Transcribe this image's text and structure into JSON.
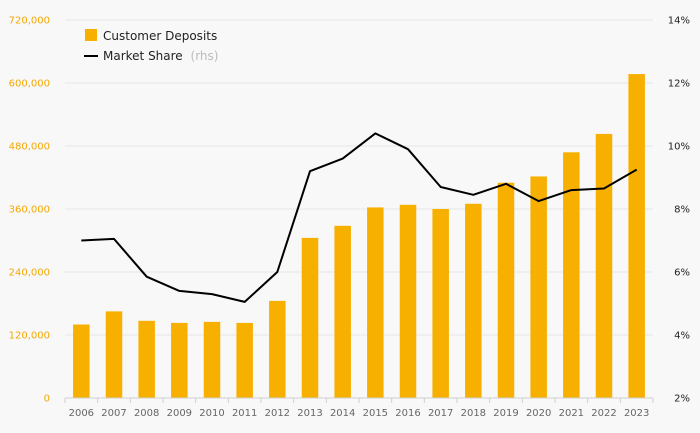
{
  "chart_data": {
    "type": "bar",
    "categories": [
      "2006",
      "2007",
      "2008",
      "2009",
      "2010",
      "2011",
      "2012",
      "2013",
      "2014",
      "2015",
      "2016",
      "2017",
      "2018",
      "2019",
      "2020",
      "2021",
      "2022",
      "2023"
    ],
    "series": [
      {
        "name": "Customer Deposits",
        "type": "bar",
        "axis": "left",
        "color": "#f7b000",
        "values": [
          140000,
          165000,
          147000,
          143000,
          145000,
          143000,
          185000,
          305000,
          328000,
          363000,
          368000,
          360000,
          370000,
          410000,
          422000,
          468000,
          503000,
          617000
        ]
      },
      {
        "name": "Market Share",
        "name_suffix": "(rhs)",
        "type": "line",
        "axis": "right",
        "color": "#000000",
        "values": [
          7.0,
          7.05,
          5.85,
          5.4,
          5.3,
          5.05,
          6.0,
          9.2,
          9.6,
          10.4,
          9.9,
          8.7,
          8.45,
          8.8,
          8.25,
          8.6,
          8.65,
          9.25
        ]
      }
    ],
    "y_left": {
      "ylim": [
        0,
        720000
      ],
      "ticks": [
        0,
        120000,
        240000,
        360000,
        480000,
        600000,
        720000
      ],
      "tick_labels": [
        "0",
        "120,000",
        "240,000",
        "360,000",
        "480,000",
        "600,000",
        "720,000"
      ],
      "color": "#f5a800"
    },
    "y_right": {
      "ylim": [
        2,
        14
      ],
      "ticks": [
        2,
        4,
        6,
        8,
        10,
        12,
        14
      ],
      "tick_labels": [
        "2%",
        "4%",
        "6%",
        "8%",
        "10%",
        "12%",
        "14%"
      ]
    },
    "grid": true,
    "legend": {
      "position": "top-left",
      "entries": [
        {
          "label": "Customer Deposits",
          "suffix": ""
        },
        {
          "label": "Market Share",
          "suffix": "(rhs)"
        }
      ]
    }
  }
}
